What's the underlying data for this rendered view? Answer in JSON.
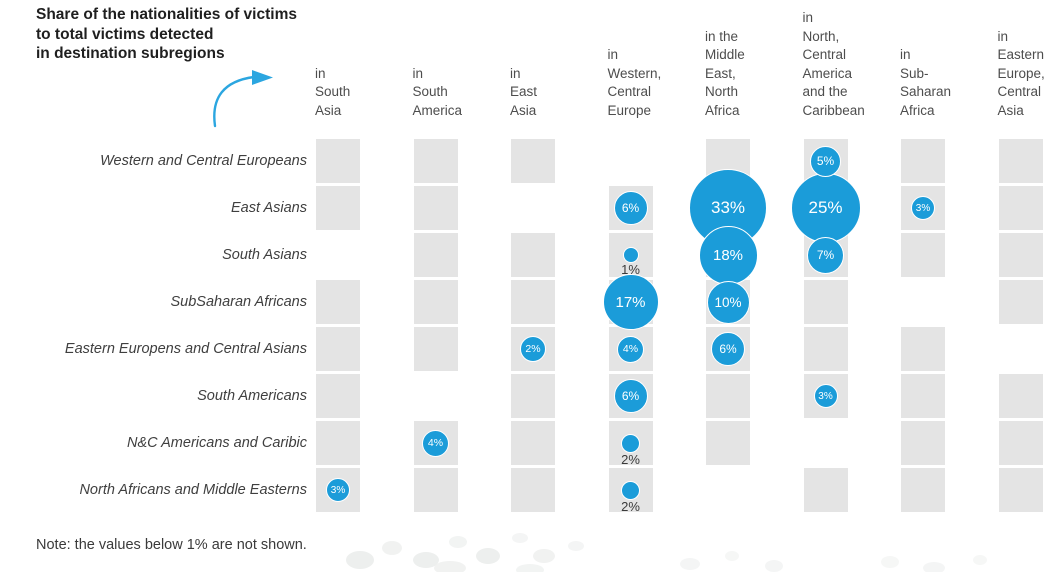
{
  "header": {
    "title_display": "Share of the nationalities of victims\nto total victims detected\nin destination subregions"
  },
  "note": {
    "text": "Note: the values below 1% are not shown."
  },
  "colors": {
    "bubble": "#1b9cd9",
    "bubble_text": "#ffffff",
    "cell": "#e4e4e4",
    "below_text": "#3a3a3a",
    "title_text": "#1f1f1f",
    "header_text": "#4d4d4d",
    "row_label_text": "#3f3f3f",
    "note_text": "#3a3a3a",
    "arrow": "#2ba6e0",
    "watermark": "#edefee"
  },
  "chart_data": {
    "type": "bubble-matrix",
    "title": "Share of the nationalities of victims to total victims detected in destination subregions",
    "unit": "percent",
    "note": "Note: the values below 1% are not shown.",
    "columns": [
      "in South Asia",
      "in South America",
      "in East Asia",
      "in Western, Central Europe",
      "in the Middle East, North Africa",
      "in North, Central America and the Caribbean",
      "in Sub-Saharan Africa",
      "in Eastern Europe, Central Asia"
    ],
    "column_header_lines": [
      "in\nSouth\nAsia",
      "in\nSouth\nAmerica",
      "in\nEast\nAsia",
      "in\nWestern,\nCentral\nEurope",
      "in the\nMiddle\nEast,\nNorth\nAfrica",
      "in\nNorth,\nCentral\nAmerica\nand the\nCaribbean",
      "in\nSub-\nSaharan\nAfrica",
      "in\nEastern\nEurope,\nCentral\nAsia"
    ],
    "rows": [
      "Western and Central Europeans",
      "East Asians",
      "South Asians",
      "SubSaharan Africans",
      "Eastern Europens and Central Asians",
      "South Americans",
      "N&C Americans and Caribic",
      "North Africans and Middle Easterns"
    ],
    "matrix": [
      [
        null,
        null,
        null,
        null,
        null,
        5,
        null,
        null
      ],
      [
        null,
        null,
        null,
        6,
        33,
        25,
        3,
        null
      ],
      [
        null,
        null,
        null,
        1,
        18,
        7,
        null,
        null
      ],
      [
        null,
        null,
        null,
        17,
        10,
        null,
        null,
        null
      ],
      [
        null,
        null,
        2,
        4,
        6,
        null,
        null,
        null
      ],
      [
        null,
        null,
        null,
        6,
        null,
        3,
        null,
        null
      ],
      [
        null,
        4,
        null,
        2,
        null,
        null,
        null,
        null
      ],
      [
        3,
        null,
        null,
        2,
        null,
        null,
        null,
        null
      ]
    ],
    "empty_cells": [
      [
        0,
        3
      ],
      [
        1,
        2
      ],
      [
        2,
        0
      ],
      [
        3,
        6
      ],
      [
        4,
        7
      ],
      [
        5,
        1
      ],
      [
        6,
        5
      ],
      [
        7,
        4
      ]
    ],
    "bubbles": [
      {
        "row": 0,
        "col": 5,
        "value": 5,
        "label": "5%",
        "label_position": "inside",
        "d": 31
      },
      {
        "row": 1,
        "col": 3,
        "value": 6,
        "label": "6%",
        "label_position": "inside",
        "d": 34
      },
      {
        "row": 1,
        "col": 4,
        "value": 33,
        "label": "33%",
        "label_position": "inside",
        "d": 78
      },
      {
        "row": 1,
        "col": 5,
        "value": 25,
        "label": "25%",
        "label_position": "inside",
        "d": 70
      },
      {
        "row": 1,
        "col": 6,
        "value": 3,
        "label": "3%",
        "label_position": "inside",
        "d": 24
      },
      {
        "row": 2,
        "col": 3,
        "value": 1,
        "label": "1%",
        "label_position": "below",
        "d": 16
      },
      {
        "row": 2,
        "col": 4,
        "value": 18,
        "label": "18%",
        "label_position": "inside",
        "d": 59
      },
      {
        "row": 2,
        "col": 5,
        "value": 7,
        "label": "7%",
        "label_position": "inside",
        "d": 37
      },
      {
        "row": 3,
        "col": 3,
        "value": 17,
        "label": "17%",
        "label_position": "inside",
        "d": 56
      },
      {
        "row": 3,
        "col": 4,
        "value": 10,
        "label": "10%",
        "label_position": "inside",
        "d": 43
      },
      {
        "row": 4,
        "col": 2,
        "value": 2,
        "label": "2%",
        "label_position": "inside",
        "d": 26
      },
      {
        "row": 4,
        "col": 3,
        "value": 4,
        "label": "4%",
        "label_position": "inside",
        "d": 27
      },
      {
        "row": 4,
        "col": 4,
        "value": 6,
        "label": "6%",
        "label_position": "inside",
        "d": 34
      },
      {
        "row": 5,
        "col": 3,
        "value": 6,
        "label": "6%",
        "label_position": "inside",
        "d": 34
      },
      {
        "row": 5,
        "col": 5,
        "value": 3,
        "label": "3%",
        "label_position": "inside",
        "d": 24
      },
      {
        "row": 6,
        "col": 1,
        "value": 4,
        "label": "4%",
        "label_position": "inside",
        "d": 27
      },
      {
        "row": 6,
        "col": 3,
        "value": 2,
        "label": "2%",
        "label_position": "below",
        "d": 19
      },
      {
        "row": 7,
        "col": 0,
        "value": 3,
        "label": "3%",
        "label_position": "inside",
        "d": 24
      },
      {
        "row": 7,
        "col": 3,
        "value": 2,
        "label": "2%",
        "label_position": "below",
        "d": 19
      }
    ],
    "layout": {
      "grid_on": false,
      "legend": "none"
    }
  }
}
